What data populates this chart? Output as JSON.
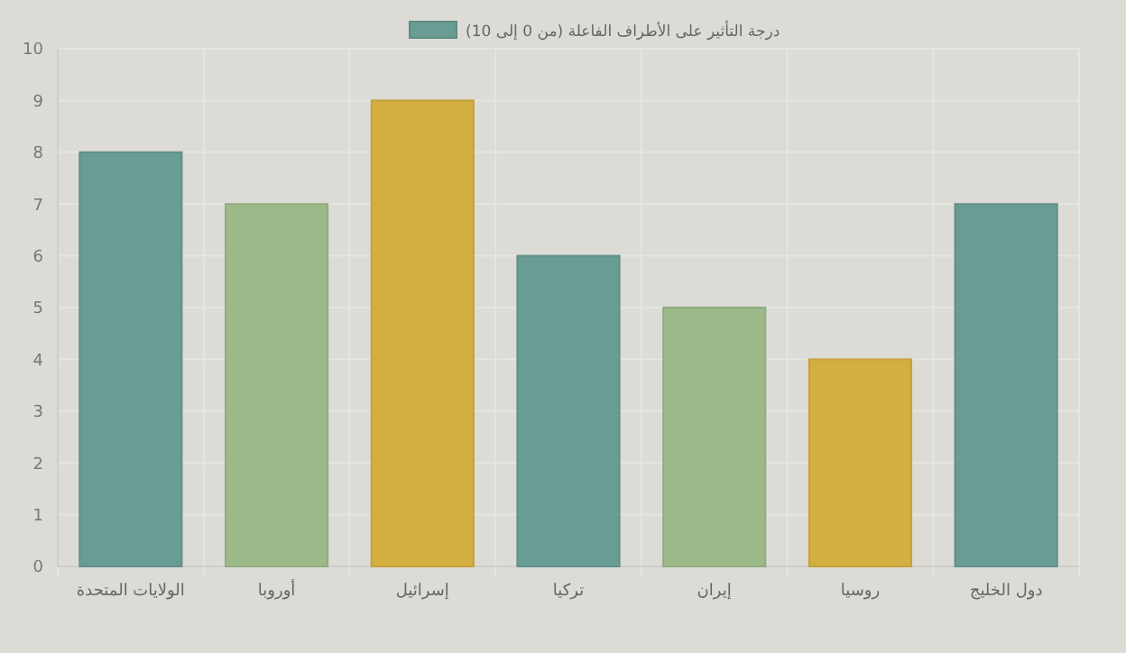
{
  "chart_data": {
    "type": "bar",
    "categories": [
      "الولايات المتحدة",
      "أوروبا",
      "إسرائيل",
      "تركيا",
      "إيران",
      "روسيا",
      "دول الخليج"
    ],
    "series": [
      {
        "name": "درجة التأثير على الأطراف الفاعلة (من 0 إلى 10)",
        "color": "#699c93",
        "colors": [
          "#699c93",
          "#9cb98a",
          "#d3ae40",
          "#699c93",
          "#9cb98a",
          "#d3ae40",
          "#699c93"
        ],
        "values": [
          8,
          7,
          9,
          6,
          5,
          4,
          7
        ]
      }
    ],
    "ylim": [
      0,
      10
    ],
    "yticks": [
      0,
      1,
      2,
      3,
      4,
      5,
      6,
      7,
      8,
      9,
      10
    ],
    "grid": true,
    "legend": "top"
  }
}
